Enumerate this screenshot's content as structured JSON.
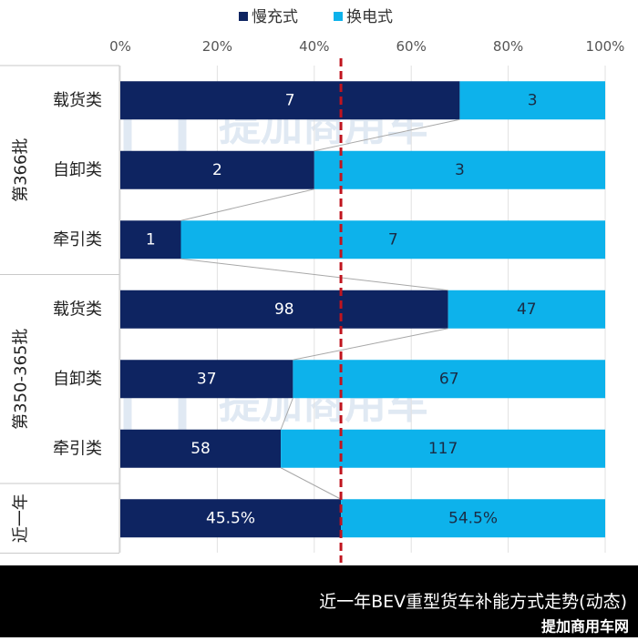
{
  "chart_data": {
    "type": "bar",
    "stacked": "percent",
    "orientation": "horizontal",
    "legend": {
      "placement": "top-center",
      "items": [
        {
          "name": "慢充式",
          "color": "#0e2461"
        },
        {
          "name": "换电式",
          "color": "#0db2eb"
        }
      ]
    },
    "xaxis": {
      "ticks": [
        "0%",
        "20%",
        "40%",
        "60%",
        "80%",
        "100%"
      ],
      "range": [
        0,
        100
      ]
    },
    "groups": [
      {
        "label": "第366批",
        "categories": [
          "载货类",
          "自卸类",
          "牵引类"
        ]
      },
      {
        "label": "第350-365批",
        "categories": [
          "载货类",
          "自卸类",
          "牵引类"
        ]
      },
      {
        "label": "近一年",
        "categories": [
          ""
        ]
      }
    ],
    "rows": [
      {
        "group": 0,
        "category": "载货类",
        "slow_label": "7",
        "swap_label": "3",
        "slow_pct": 70
      },
      {
        "group": 0,
        "category": "自卸类",
        "slow_label": "2",
        "swap_label": "3",
        "slow_pct": 40
      },
      {
        "group": 0,
        "category": "牵引类",
        "slow_label": "1",
        "swap_label": "7",
        "slow_pct": 12.5
      },
      {
        "group": 1,
        "category": "载货类",
        "slow_label": "98",
        "swap_label": "47",
        "slow_pct": 67.6
      },
      {
        "group": 1,
        "category": "自卸类",
        "slow_label": "37",
        "swap_label": "67",
        "slow_pct": 35.6
      },
      {
        "group": 1,
        "category": "牵引类",
        "slow_label": "58",
        "swap_label": "117",
        "slow_pct": 33.1
      },
      {
        "group": 2,
        "category": "",
        "slow_label": "45.5%",
        "swap_label": "54.5%",
        "slow_pct": 45.5
      }
    ],
    "reference_line": {
      "value": 45.5,
      "color": "#c0141e",
      "style": "dashed"
    },
    "grid": true
  },
  "watermark": {
    "title": "提加商用车",
    "subtitle": "TruckP"
  },
  "footer": {
    "caption": "近一年BEV重型货车补能方式走势(动态)",
    "brand": "提加商用车网"
  }
}
